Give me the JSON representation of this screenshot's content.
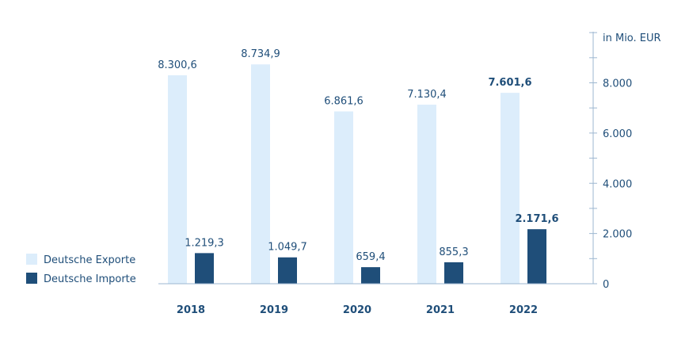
{
  "chart_data": {
    "type": "bar",
    "categories": [
      "2018",
      "2019",
      "2020",
      "2021",
      "2022"
    ],
    "series": [
      {
        "name": "Deutsche Exporte",
        "color": "#dcedfb",
        "values": [
          8300.6,
          8734.9,
          6861.6,
          7130.4,
          7601.6
        ],
        "labels": [
          "8.300,6",
          "8.734,9",
          "6.861,6",
          "7.130,4",
          "7.601,6"
        ]
      },
      {
        "name": "Deutsche Importe",
        "color": "#1f4e79",
        "values": [
          1219.3,
          1049.7,
          659.4,
          855.3,
          2171.6
        ],
        "labels": [
          "1.219,3",
          "1.049,7",
          "659,4",
          "855,3",
          "2.171,6"
        ]
      }
    ],
    "ylabel": "in Mio. EUR",
    "ylim": [
      0,
      10000
    ],
    "yticks": [
      0,
      2000,
      4000,
      6000,
      8000
    ],
    "ytick_labels": [
      "0",
      "2.000",
      "4.000",
      "6.000",
      "8.000"
    ],
    "highlight_category": "2022",
    "grid": false,
    "legend_position": "bottom-left",
    "axis_color": "#9db7d0",
    "text_color": "#1f4e79"
  }
}
